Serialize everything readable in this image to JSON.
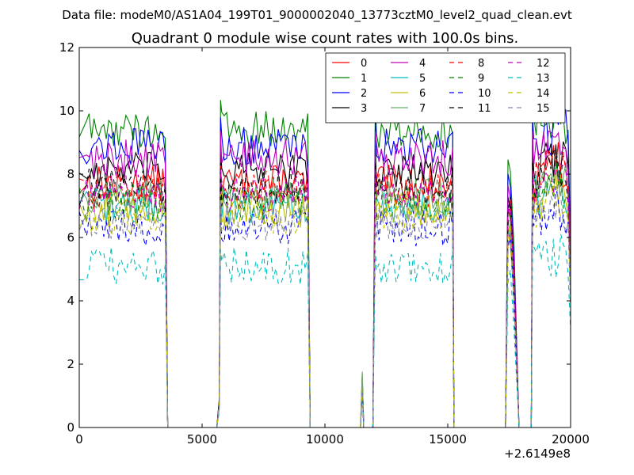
{
  "chart_data": {
    "type": "line",
    "suptitle": "Data file: modeM0/AS1A04_199T01_9000002040_13773cztM0_level2_quad_clean.evt",
    "title": "Quadrant 0 module wise count rates with 100.0s bins.",
    "xlabel": "",
    "ylabel": "",
    "x_offset_label": "+2.6149e8",
    "xlim": [
      0,
      20000
    ],
    "ylim": [
      0,
      12
    ],
    "x_ticks": [
      0,
      5000,
      10000,
      15000,
      20000
    ],
    "y_ticks": [
      0,
      2,
      4,
      6,
      8,
      10,
      12
    ],
    "x_tick_labels": [
      "0",
      "5000",
      "10000",
      "15000",
      "20000"
    ],
    "y_tick_labels": [
      "0",
      "2",
      "4",
      "6",
      "8",
      "10",
      "12"
    ],
    "grid": false,
    "legend_position": "top-right",
    "legend_columns": 4,
    "active_segments": [
      [
        300,
        3500
      ],
      [
        5800,
        9300
      ],
      [
        12100,
        15200
      ],
      [
        17500,
        17800
      ],
      [
        18500,
        19950
      ]
    ],
    "drop_edges": [
      3600,
      5650,
      9400,
      11950,
      15250,
      17350,
      17900,
      18400
    ],
    "spike": {
      "x": 11550,
      "y": 1.8
    },
    "series": [
      {
        "name": "0",
        "color": "#ff0000",
        "style": "solid",
        "mean": 7.7
      },
      {
        "name": "1",
        "color": "#008000",
        "style": "solid",
        "mean": 9.4
      },
      {
        "name": "2",
        "color": "#0000ff",
        "style": "solid",
        "mean": 8.9
      },
      {
        "name": "3",
        "color": "#000000",
        "style": "solid",
        "mean": 8.1
      },
      {
        "name": "4",
        "color": "#bf00bf",
        "style": "solid",
        "mean": 8.5
      },
      {
        "name": "5",
        "color": "#00bfbf",
        "style": "solid",
        "mean": 7.0
      },
      {
        "name": "6",
        "color": "#bfbf00",
        "style": "solid",
        "mean": 6.9
      },
      {
        "name": "7",
        "color": "#66aa66",
        "style": "solid",
        "mean": 7.3
      },
      {
        "name": "8",
        "color": "#ff0000",
        "style": "dashed",
        "mean": 7.5
      },
      {
        "name": "9",
        "color": "#008000",
        "style": "dashed",
        "mean": 7.1
      },
      {
        "name": "10",
        "color": "#0000ff",
        "style": "dashed",
        "mean": 6.3
      },
      {
        "name": "11",
        "color": "#000000",
        "style": "dashed",
        "mean": 7.6
      },
      {
        "name": "12",
        "color": "#bf00bf",
        "style": "dashed",
        "mean": 7.4
      },
      {
        "name": "13",
        "color": "#00bfbf",
        "style": "dashed",
        "mean": 5.1
      },
      {
        "name": "14",
        "color": "#bfbf00",
        "style": "dashed",
        "mean": 6.7
      },
      {
        "name": "15",
        "color": "#8888aa",
        "style": "dashed",
        "mean": 6.5
      }
    ]
  }
}
